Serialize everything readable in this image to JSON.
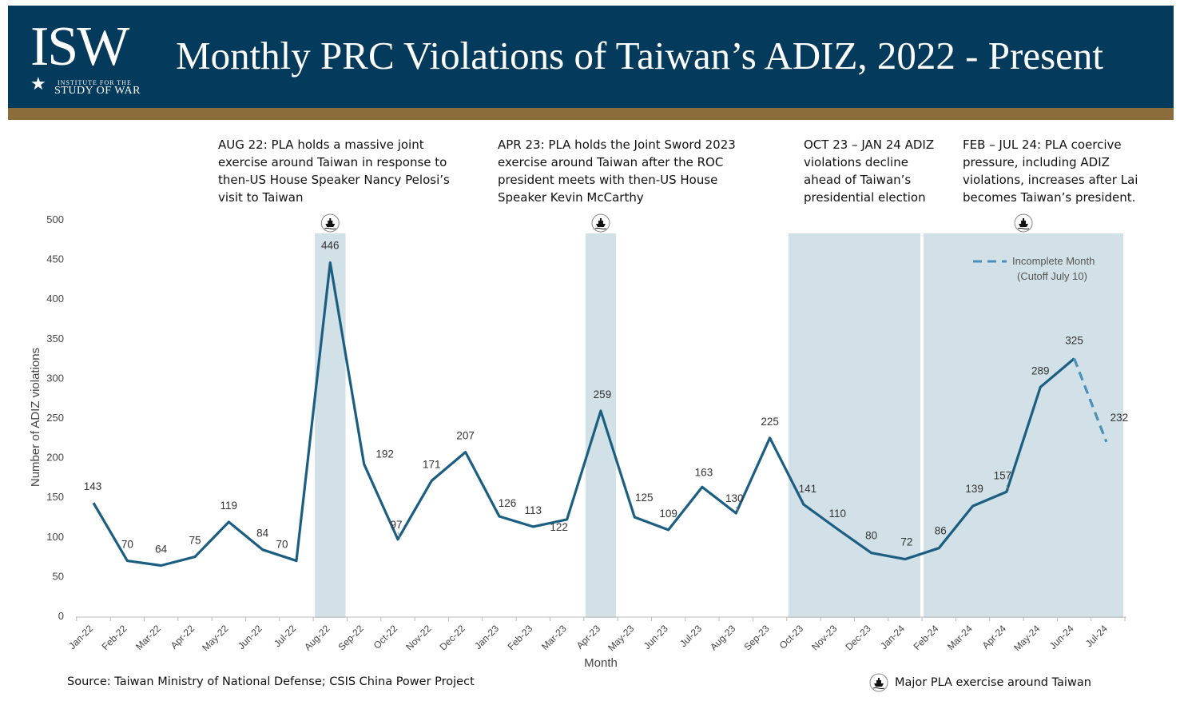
{
  "header": {
    "logo_text": "ISW",
    "logo_subtitle_line1": "INSTITUTE FOR THE",
    "logo_subtitle_line2": "STUDY OF WAR",
    "title": "Monthly PRC Violations of Taiwan’s ADIZ, 2022 - Present",
    "bg_color": "#043b5c",
    "accent_color": "#8a6d3b"
  },
  "annotations": [
    {
      "text": "AUG 22: PLA holds a massive joint exercise around Taiwan in response to then-US House Speaker Nancy Pelosi’s visit to Taiwan"
    },
    {
      "text": "APR 23: PLA holds the Joint Sword 2023 exercise around Taiwan after the ROC president meets with then-US House Speaker Kevin McCarthy"
    },
    {
      "text": "OCT 23 – JAN 24 ADIZ violations decline ahead of Taiwan’s presidential election"
    },
    {
      "text": "FEB – JUL 24: PLA coercive pressure, including ADIZ violations, increases after Lai becomes Taiwan’s president."
    }
  ],
  "source": "Source: Taiwan Ministry of National Defense; CSIS China Power Project",
  "legend_exercise_label": "Major PLA exercise around Taiwan",
  "chart_data": {
    "type": "line",
    "xlabel": "Month",
    "ylabel": "Number of ADIZ violations",
    "ylim": [
      0,
      500
    ],
    "yticks": [
      0,
      50,
      100,
      150,
      200,
      250,
      300,
      350,
      400,
      450,
      500
    ],
    "categories": [
      "Jan-22",
      "Feb-22",
      "Mar-22",
      "Apr-22",
      "May-22",
      "Jun-22",
      "Jul-22",
      "Aug-22",
      "Sep-22",
      "Oct-22",
      "Nov-22",
      "Dec-22",
      "Jan-23",
      "Feb-23",
      "Mar-23",
      "Apr-23",
      "May-23",
      "Jun-23",
      "Jul-23",
      "Aug-23",
      "Sep-23",
      "Oct-23",
      "Nov-23",
      "Dec-23",
      "Jan-24",
      "Feb-24",
      "Mar-24",
      "Apr-24",
      "May-24",
      "Jun-24",
      "Jul-24"
    ],
    "series": [
      {
        "values": [
          143,
          70,
          64,
          75,
          119,
          84,
          70,
          446,
          192,
          97,
          171,
          207,
          126,
          113,
          122,
          259,
          125,
          109,
          163,
          130,
          225,
          141,
          110,
          80,
          72,
          86,
          139,
          157,
          289,
          325,
          232
        ],
        "color": "#1b5e82"
      }
    ],
    "incomplete_from": "Jun-24",
    "incomplete_color": "#4a90b8",
    "legend": {
      "label_line1": "Incomplete Month",
      "label_line2": "(Cutoff July 10)",
      "placement": "top-right"
    },
    "highlight_color": "#d2e0e7",
    "shaded_ranges": [
      {
        "from": "Aug-22",
        "to": "Aug-22",
        "exercise": true
      },
      {
        "from": "Apr-23",
        "to": "Apr-23",
        "exercise": true
      },
      {
        "from": "Oct-23",
        "to": "Jan-24",
        "exercise": false
      },
      {
        "from": "Feb-24",
        "to": "Jul-24",
        "exercise": true
      }
    ],
    "grid": false
  }
}
